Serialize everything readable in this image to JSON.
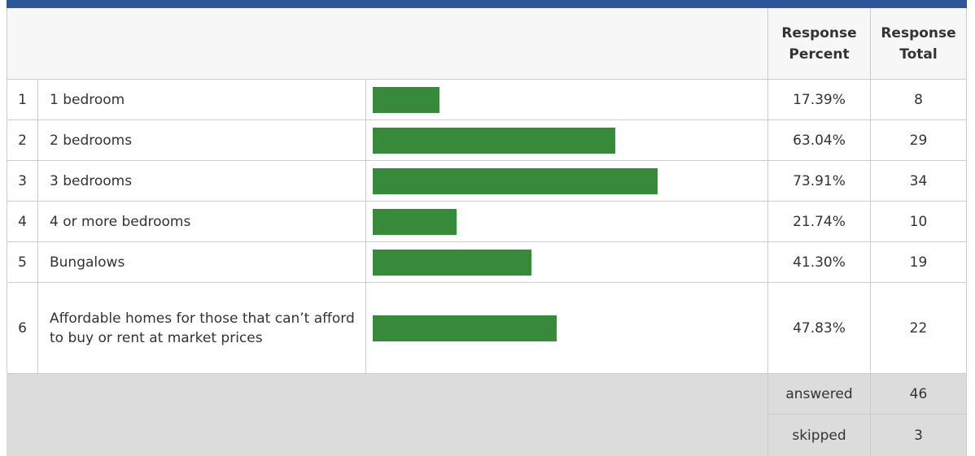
{
  "table": {
    "header": {
      "percent": "Response Percent",
      "total": "Response Total"
    },
    "rows": [
      {
        "number": 1,
        "label": "1 bedroom",
        "percent": 17.39,
        "percent_label": "17.39%",
        "total": 8
      },
      {
        "number": 2,
        "label": "2 bedrooms",
        "percent": 63.04,
        "percent_label": "63.04%",
        "total": 29
      },
      {
        "number": 3,
        "label": "3 bedrooms",
        "percent": 73.91,
        "percent_label": "73.91%",
        "total": 34
      },
      {
        "number": 4,
        "label": "4 or more bedrooms",
        "percent": 21.74,
        "percent_label": "21.74%",
        "total": 10
      },
      {
        "number": 5,
        "label": "Bungalows",
        "percent": 41.3,
        "percent_label": "41.30%",
        "total": 19
      },
      {
        "number": 6,
        "label": "Affordable homes for those that can’t afford to buy or rent at market prices",
        "percent": 47.83,
        "percent_label": "47.83%",
        "total": 22
      }
    ],
    "bar_color": "#388a3b",
    "footer": {
      "answered_label": "answered",
      "answered": 46,
      "skipped_label": "skipped",
      "skipped": 3
    }
  }
}
